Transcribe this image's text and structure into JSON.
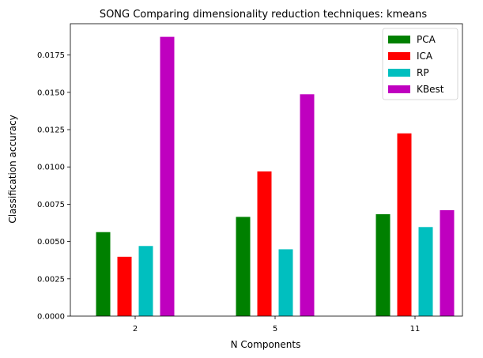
{
  "chart_data": {
    "type": "bar",
    "title": "SONG Comparing dimensionality reduction techniques: kmeans",
    "xlabel": "N Components",
    "ylabel": "Classification accuracy",
    "categories": [
      "2",
      "5",
      "11"
    ],
    "ylim": [
      0,
      0.0196
    ],
    "yticks": [
      "0.0000",
      "0.0025",
      "0.0050",
      "0.0075",
      "0.0100",
      "0.0125",
      "0.0150",
      "0.0175"
    ],
    "legend_position": "top-right",
    "grid": false,
    "series": [
      {
        "name": "PCA",
        "color": "#008000",
        "values": [
          0.00563,
          0.00665,
          0.00683
        ]
      },
      {
        "name": "ICA",
        "color": "#ff0000",
        "values": [
          0.00398,
          0.0097,
          0.01225
        ]
      },
      {
        "name": "RP",
        "color": "#00bfbf",
        "values": [
          0.0047,
          0.00448,
          0.00597
        ]
      },
      {
        "name": "KBest",
        "color": "#bf00bf",
        "values": [
          0.01872,
          0.01487,
          0.0071
        ]
      }
    ]
  }
}
